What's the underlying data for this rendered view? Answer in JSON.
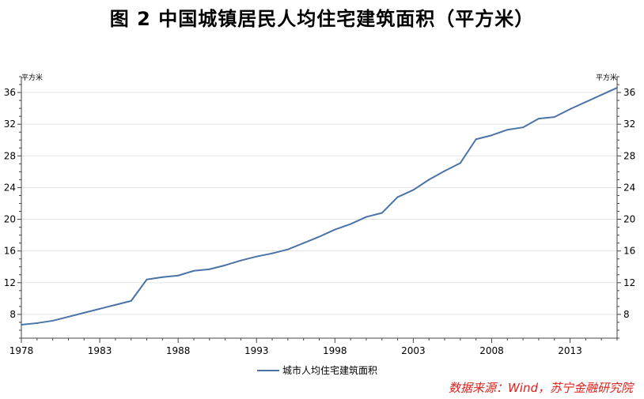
{
  "title": "图 2   中国城镇居民人均住宅建筑面积（平方米）",
  "source": "数据来源：Wind，苏宁金融研究院",
  "chart_data": {
    "type": "line",
    "title": "图 2   中国城镇居民人均住宅建筑面积（平方米）",
    "y_unit_left": "平方米",
    "y_unit_right": "平方米",
    "xlim": [
      1978,
      2016
    ],
    "ylim": [
      5,
      38
    ],
    "x_ticks": [
      1978,
      1983,
      1988,
      1993,
      1998,
      2003,
      2008,
      2013
    ],
    "y_ticks": [
      8,
      12,
      16,
      20,
      24,
      28,
      32,
      36
    ],
    "grid": true,
    "legend_position": "bottom",
    "series": [
      {
        "name": "城市人均住宅建筑面积",
        "color": "#4a74a8",
        "x": [
          1978,
          1979,
          1980,
          1981,
          1982,
          1983,
          1984,
          1985,
          1986,
          1987,
          1988,
          1989,
          1990,
          1991,
          1992,
          1993,
          1994,
          1995,
          1996,
          1997,
          1998,
          1999,
          2000,
          2001,
          2002,
          2003,
          2004,
          2005,
          2006,
          2007,
          2008,
          2009,
          2010,
          2011,
          2012,
          2013,
          2014,
          2015,
          2016
        ],
        "values": [
          6.7,
          6.9,
          7.2,
          7.7,
          8.2,
          8.7,
          9.2,
          9.7,
          12.4,
          12.7,
          12.9,
          13.5,
          13.7,
          14.2,
          14.8,
          15.3,
          15.7,
          16.2,
          17.0,
          17.8,
          18.7,
          19.4,
          20.3,
          20.8,
          22.8,
          23.7,
          25.0,
          26.1,
          27.1,
          30.1,
          30.6,
          31.3,
          31.6,
          32.7,
          32.9,
          33.9,
          34.8,
          35.7,
          36.6
        ]
      }
    ]
  }
}
